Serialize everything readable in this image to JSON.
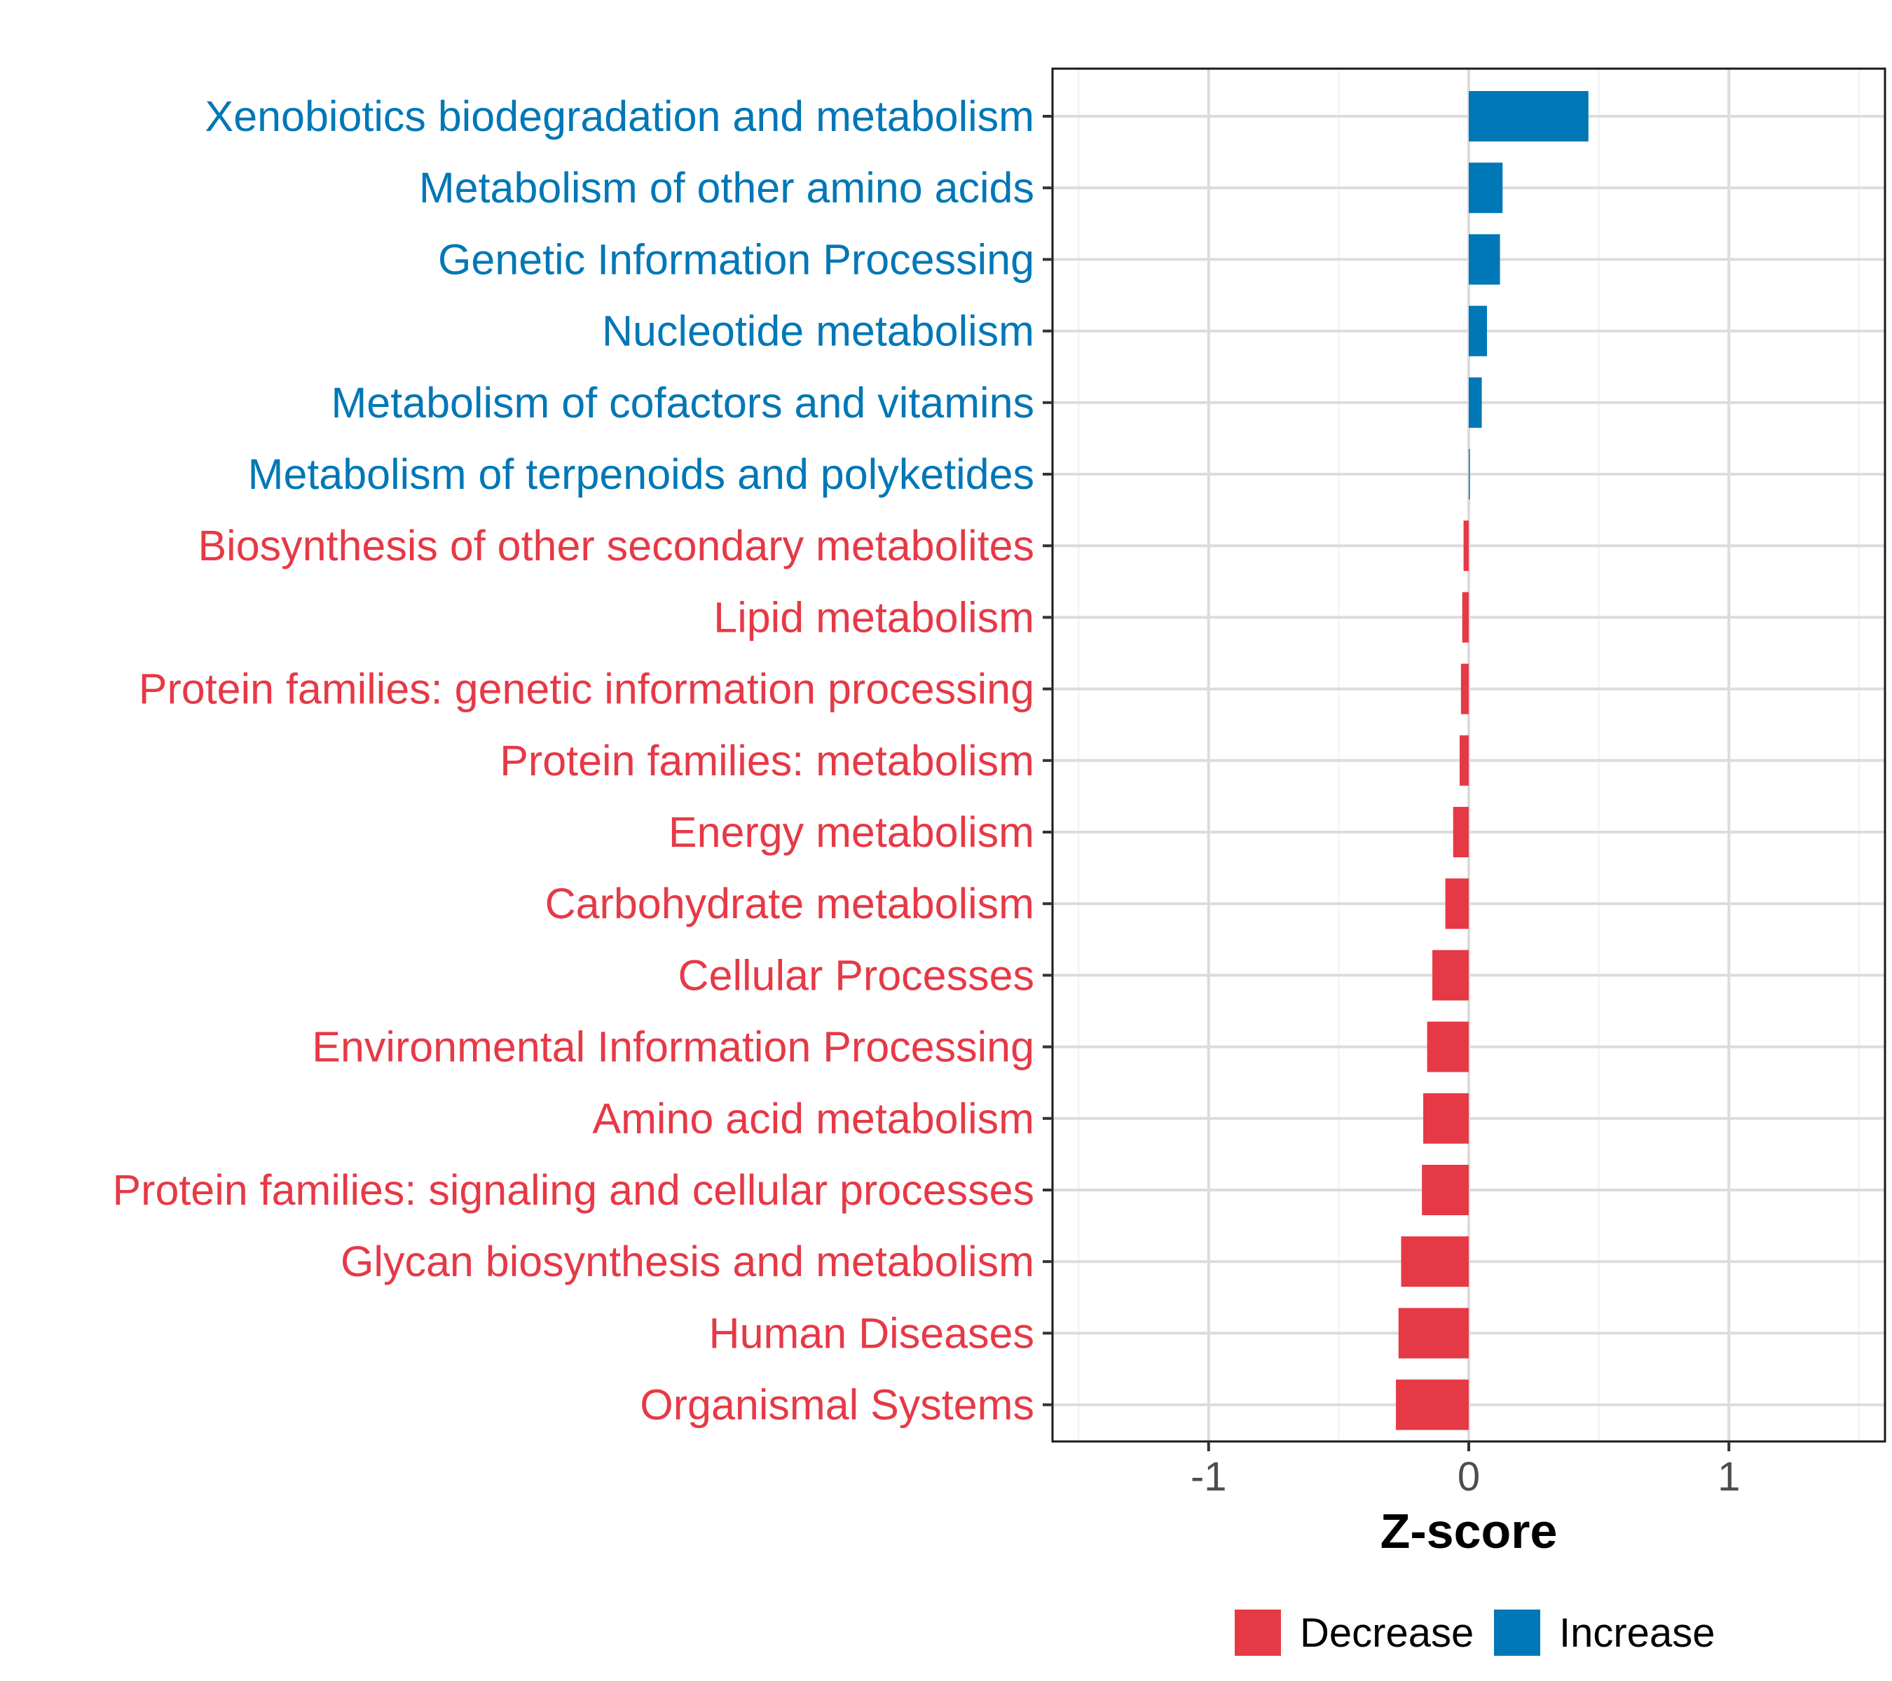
{
  "chart_data": {
    "type": "bar",
    "orientation": "horizontal",
    "title": "",
    "xlabel": "Z-score",
    "ylabel": "",
    "xlim": [
      -1.6,
      1.6
    ],
    "xticks": [
      -1,
      0,
      1
    ],
    "xtick_labels": [
      "-1",
      "0",
      "1"
    ],
    "grid": true,
    "legend_position": "bottom",
    "colors": {
      "Decrease": "#E63946",
      "Increase": "#0077B6"
    },
    "categories": [
      "Xenobiotics biodegradation and metabolism",
      "Metabolism of other amino acids",
      "Genetic Information Processing",
      "Nucleotide metabolism",
      "Metabolism of cofactors and vitamins",
      "Metabolism of terpenoids and polyketides",
      "Biosynthesis of other secondary metabolites",
      "Lipid metabolism",
      "Protein families: genetic information processing",
      "Protein families: metabolism",
      "Energy metabolism",
      "Carbohydrate metabolism",
      "Cellular Processes",
      "Environmental Information Processing",
      "Amino acid metabolism",
      "Protein families: signaling and cellular processes",
      "Glycan biosynthesis and metabolism",
      "Human Diseases",
      "Organismal Systems"
    ],
    "values": [
      0.46,
      0.13,
      0.12,
      0.07,
      0.05,
      0.003,
      -0.02,
      -0.025,
      -0.03,
      -0.035,
      -0.06,
      -0.09,
      -0.14,
      -0.16,
      -0.175,
      -0.18,
      -0.26,
      -0.27,
      -0.28
    ],
    "groups": [
      "Increase",
      "Increase",
      "Increase",
      "Increase",
      "Increase",
      "Increase",
      "Decrease",
      "Decrease",
      "Decrease",
      "Decrease",
      "Decrease",
      "Decrease",
      "Decrease",
      "Decrease",
      "Decrease",
      "Decrease",
      "Decrease",
      "Decrease",
      "Decrease"
    ],
    "legend": [
      "Decrease",
      "Increase"
    ]
  }
}
